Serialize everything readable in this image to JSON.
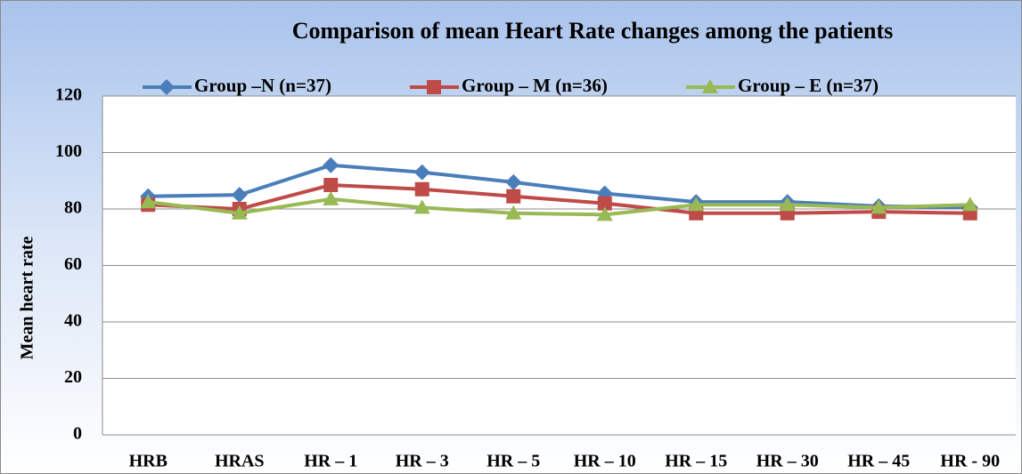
{
  "chart_data": {
    "type": "line",
    "title": "Comparison of mean Heart Rate changes among the patients",
    "y_label": "Mean heart rate",
    "categories": [
      "HRB",
      "HRAS",
      "HR – 1",
      "HR – 3",
      "HR – 5",
      "HR – 10",
      "HR – 15",
      "HR – 30",
      "HR – 45",
      "HR - 90"
    ],
    "series": [
      {
        "name": "Group –N (n=37)",
        "color": "#4a7ebb",
        "marker": "diamond",
        "values": [
          84.5,
          85,
          95.5,
          93,
          89.5,
          85.5,
          82.5,
          82.5,
          81,
          80.5
        ]
      },
      {
        "name": "Group – M (n=36)",
        "color": "#be4b48",
        "marker": "square",
        "values": [
          81.5,
          80,
          88.5,
          87,
          84.5,
          82,
          78.5,
          78.5,
          79,
          78.5
        ]
      },
      {
        "name": "Group – E (n=37)",
        "color": "#98b954",
        "marker": "triangle",
        "values": [
          82.5,
          78.5,
          83.5,
          80.5,
          78.5,
          78,
          81.5,
          81.5,
          80.5,
          81.5
        ]
      }
    ],
    "ylim": [
      0,
      120
    ],
    "yticks": [
      0,
      20,
      40,
      60,
      80,
      100,
      120
    ],
    "grid": true,
    "legend": "top"
  }
}
